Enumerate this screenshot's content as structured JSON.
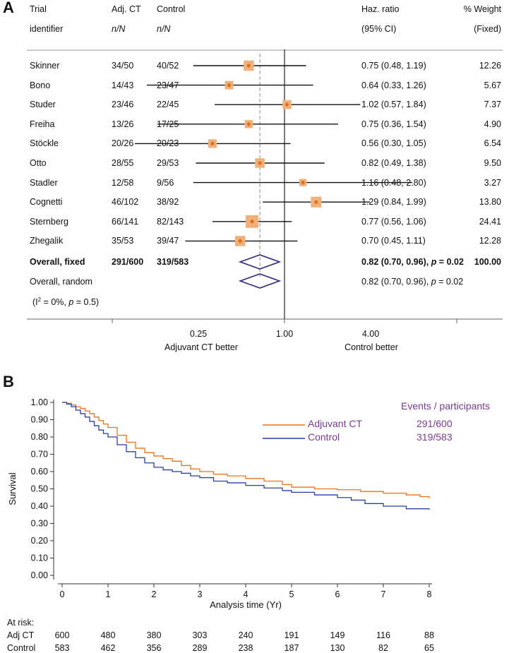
{
  "panel_a": {
    "letter": "A",
    "headers": {
      "trial_line1": "Trial",
      "trial_line2": "identifier",
      "adj_line1": "Adj. CT",
      "adj_line2": "n/N",
      "ctrl_line1": "Control",
      "ctrl_line2": "n/N",
      "hr_line1": "Haz.  ratio",
      "hr_line2": "(95% CI)",
      "wt_line1": "% Weight",
      "wt_line2": "(Fixed)"
    },
    "rows": [
      {
        "trial": "Skinner",
        "adj": "34/50",
        "ctrl": "40/52",
        "hr_text": "0.75 (0.48, 1.19)",
        "weight": "12.26"
      },
      {
        "trial": "Bono",
        "adj": "14/43",
        "ctrl": "23/47",
        "hr_text": "0.64 (0.33, 1.26)",
        "weight": "5.67"
      },
      {
        "trial": "Studer",
        "adj": "23/46",
        "ctrl": "22/45",
        "hr_text": "1.02 (0.57, 1.84)",
        "weight": "7.37"
      },
      {
        "trial": "Freiha",
        "adj": "13/26",
        "ctrl": "17/25",
        "hr_text": "0.75 (0.36, 1.54)",
        "weight": "4.90"
      },
      {
        "trial": "Stöckle",
        "adj": "20/26",
        "ctrl": "20/23",
        "hr_text": "0.56 (0.30, 1.05)",
        "weight": "6.54"
      },
      {
        "trial": "Otto",
        "adj": "28/55",
        "ctrl": "29/53",
        "hr_text": "0.82 (0.49, 1.38)",
        "weight": "9.50"
      },
      {
        "trial": "Stadler",
        "adj": "12/58",
        "ctrl": "9/56",
        "hr_text": "1.16 (0.48, 2.80)",
        "weight": "3.27"
      },
      {
        "trial": "Cognetti",
        "adj": "46/102",
        "ctrl": "38/92",
        "hr_text": "1.29 (0.84, 1.99)",
        "weight": "13.80"
      },
      {
        "trial": "Sternberg",
        "adj": "66/141",
        "ctrl": "82/143",
        "hr_text": "0.77 (0.56, 1.06)",
        "weight": "24.41"
      },
      {
        "trial": "Zhegalik",
        "adj": "35/53",
        "ctrl": "39/47",
        "hr_text": "0.70 (0.45, 1.11)",
        "weight": "12.28"
      }
    ],
    "overall_fixed": {
      "label": "Overall,  fixed",
      "adj": "291/600",
      "ctrl": "319/583",
      "hr_text": "0.82 (0.70, 0.96),",
      "p_label": "p",
      "p_text": " = 0.02",
      "weight": "100.00"
    },
    "overall_random": {
      "label": "Overall,  random",
      "hr_text": "0.82 (0.70, 0.96),",
      "p_label": "p",
      "p_text": " = 0.02"
    },
    "heterogeneity": {
      "prefix": "(I",
      "sup": "2",
      "mid": " = 0%, ",
      "p_label": "p",
      "suffix": " = 0.5)"
    },
    "axis": {
      "ticks": [
        "0.25",
        "1.00",
        "4.00"
      ],
      "left_label": "Adjuvant  CT better",
      "right_label": "Control better"
    }
  },
  "panel_b": {
    "letter": "B",
    "legend_title": "Events / participants",
    "legend_items": [
      {
        "name": "Adjuvant  CT",
        "value": "291/600",
        "color": "#E8741F"
      },
      {
        "name": "Control",
        "value": "319/583",
        "color": "#2B3FA0"
      }
    ],
    "at_risk_title": "At risk:",
    "at_risk": [
      {
        "label": "Adj CT",
        "values": [
          "600",
          "480",
          "380",
          "303",
          "240",
          "191",
          "149",
          "116",
          "88"
        ]
      },
      {
        "label": "Control",
        "values": [
          "583",
          "462",
          "356",
          "289",
          "238",
          "187",
          "130",
          "82",
          "65"
        ]
      }
    ]
  },
  "chart_data": [
    {
      "type": "forest",
      "scale": "log",
      "xlim": [
        0.25,
        4.0
      ],
      "xticks": [
        0.25,
        1.0,
        4.0
      ],
      "reference_line": 1.0,
      "pooled_line": 0.82,
      "studies": [
        {
          "name": "Skinner",
          "hr": 0.75,
          "lo": 0.48,
          "hi": 1.19,
          "weight": 12.26
        },
        {
          "name": "Bono",
          "hr": 0.64,
          "lo": 0.33,
          "hi": 1.26,
          "weight": 5.67
        },
        {
          "name": "Studer",
          "hr": 1.02,
          "lo": 0.57,
          "hi": 1.84,
          "weight": 7.37
        },
        {
          "name": "Freiha",
          "hr": 0.75,
          "lo": 0.36,
          "hi": 1.54,
          "weight": 4.9
        },
        {
          "name": "Stöckle",
          "hr": 0.56,
          "lo": 0.3,
          "hi": 1.05,
          "weight": 6.54
        },
        {
          "name": "Otto",
          "hr": 0.82,
          "lo": 0.49,
          "hi": 1.38,
          "weight": 9.5
        },
        {
          "name": "Stadler",
          "hr": 1.16,
          "lo": 0.48,
          "hi": 2.8,
          "weight": 3.27
        },
        {
          "name": "Cognetti",
          "hr": 1.29,
          "lo": 0.84,
          "hi": 1.99,
          "weight": 13.8
        },
        {
          "name": "Sternberg",
          "hr": 0.77,
          "lo": 0.56,
          "hi": 1.06,
          "weight": 24.41
        },
        {
          "name": "Zhegalik",
          "hr": 0.7,
          "lo": 0.45,
          "hi": 1.11,
          "weight": 12.28
        }
      ],
      "overall": [
        {
          "name": "Overall, fixed",
          "hr": 0.82,
          "lo": 0.7,
          "hi": 0.96
        },
        {
          "name": "Overall, random",
          "hr": 0.82,
          "lo": 0.7,
          "hi": 0.96
        }
      ],
      "marker_color": "#F0B07A",
      "diamond_color": "#2E2A7A"
    },
    {
      "type": "line",
      "xlabel": "Analysis time (Yr)",
      "ylabel": "Survival",
      "xlim": [
        0,
        8
      ],
      "ylim": [
        0,
        1
      ],
      "xticks": [
        "0",
        "1",
        "2",
        "3",
        "4",
        "5",
        "6",
        "7",
        "8"
      ],
      "yticks": [
        "0.00",
        "0.10",
        "0.20",
        "0.30",
        "0.40",
        "0.50",
        "0.60",
        "0.70",
        "0.80",
        "0.90",
        "1.00"
      ],
      "grid": false,
      "step": true,
      "series": [
        {
          "name": "Adjuvant  CT",
          "color": "#E8741F",
          "x": [
            0,
            0.1,
            0.2,
            0.3,
            0.4,
            0.5,
            0.6,
            0.7,
            0.8,
            0.9,
            1.0,
            1.2,
            1.4,
            1.6,
            1.8,
            2.0,
            2.2,
            2.4,
            2.6,
            2.8,
            3.0,
            3.3,
            3.6,
            4.0,
            4.4,
            4.8,
            5.0,
            5.5,
            6.0,
            6.5,
            7.0,
            7.5,
            7.8,
            8.0
          ],
          "y": [
            1.0,
            0.995,
            0.985,
            0.975,
            0.965,
            0.95,
            0.935,
            0.915,
            0.895,
            0.875,
            0.855,
            0.81,
            0.77,
            0.735,
            0.71,
            0.69,
            0.675,
            0.66,
            0.635,
            0.615,
            0.6,
            0.585,
            0.575,
            0.56,
            0.545,
            0.525,
            0.51,
            0.5,
            0.495,
            0.485,
            0.475,
            0.465,
            0.455,
            0.445
          ]
        },
        {
          "name": "Control",
          "color": "#2B3FA0",
          "x": [
            0,
            0.1,
            0.2,
            0.3,
            0.4,
            0.5,
            0.6,
            0.7,
            0.8,
            0.9,
            1.0,
            1.2,
            1.4,
            1.6,
            1.8,
            2.0,
            2.2,
            2.4,
            2.6,
            2.8,
            3.0,
            3.3,
            3.6,
            4.0,
            4.4,
            4.8,
            5.0,
            5.5,
            6.0,
            6.3,
            6.6,
            7.0,
            7.5,
            8.0
          ],
          "y": [
            1.0,
            0.99,
            0.975,
            0.955,
            0.935,
            0.915,
            0.89,
            0.865,
            0.84,
            0.82,
            0.8,
            0.755,
            0.715,
            0.68,
            0.65,
            0.625,
            0.61,
            0.6,
            0.59,
            0.575,
            0.565,
            0.545,
            0.535,
            0.52,
            0.505,
            0.49,
            0.48,
            0.465,
            0.45,
            0.435,
            0.415,
            0.4,
            0.385,
            0.38
          ]
        }
      ]
    }
  ]
}
